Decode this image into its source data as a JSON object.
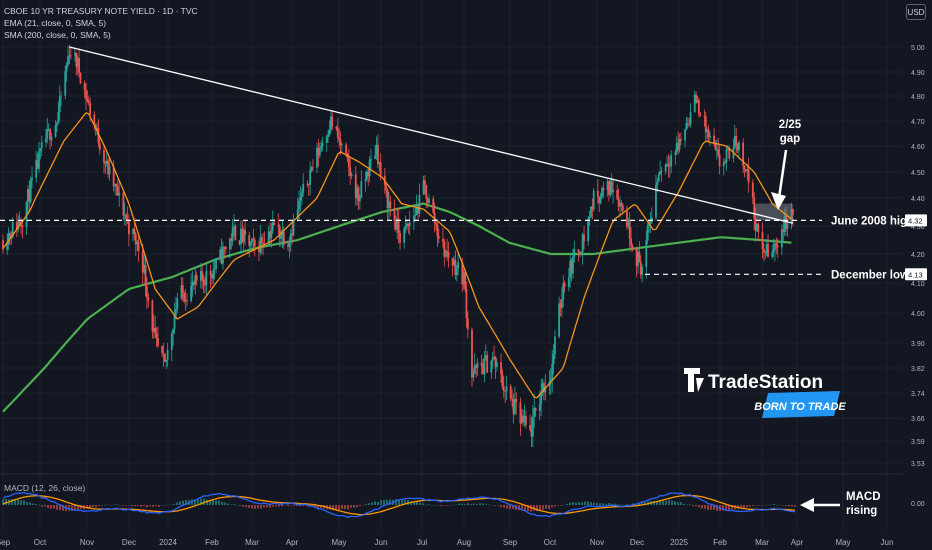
{
  "legend": {
    "title": "CBOE 10 YR TREASURY NOTE YIELD · 1D · TVC",
    "ema": "EMA (21, close, 0, SMA, 5)",
    "sma": "SMA (200, close, 0, SMA, 5)",
    "macd": "MACD (12, 26, close)"
  },
  "currency_button": "USD",
  "brand": {
    "name": "TradeStation",
    "tagline": "BORN TO TRADE"
  },
  "colors": {
    "background": "#131722",
    "up_candle": "#26a69a",
    "down_candle": "#ef5350",
    "ema": "#f7931a",
    "sma": "#4caf50",
    "trendline": "#ffffff",
    "macd_line": "#2962ff",
    "signal_line": "#ff9800",
    "accent": "#2196f3"
  },
  "chart_data": {
    "type": "candlestick",
    "y_ticks": [
      "5.00",
      "4.90",
      "4.80",
      "4.70",
      "4.60",
      "4.50",
      "4.40",
      "4.30",
      "4.20",
      "4.10",
      "4.00",
      "3.90",
      "3.82",
      "3.74",
      "3.66",
      "3.59",
      "3.53"
    ],
    "x_ticks": [
      "Sep",
      "Oct",
      "Nov",
      "Dec",
      "2024",
      "Feb",
      "Mar",
      "Apr",
      "May",
      "Jun",
      "Jul",
      "Aug",
      "Sep",
      "Oct",
      "Nov",
      "Dec",
      "2025",
      "Feb",
      "Mar",
      "Apr",
      "May",
      "Jun"
    ],
    "price_tags": [
      "4.32",
      "4.13"
    ],
    "macd_tick": "0.00",
    "candle_path": [
      [
        "2023-09-01",
        4.25
      ],
      [
        "2023-09-15",
        4.33
      ],
      [
        "2023-10-01",
        4.62
      ],
      [
        "2023-10-10",
        4.7
      ],
      [
        "2023-10-19",
        4.99
      ],
      [
        "2023-10-25",
        4.93
      ],
      [
        "2023-11-01",
        4.78
      ],
      [
        "2023-11-15",
        4.52
      ],
      [
        "2023-12-01",
        4.3
      ],
      [
        "2023-12-10",
        4.2
      ],
      [
        "2023-12-20",
        3.9
      ],
      [
        "2023-12-27",
        3.82
      ],
      [
        "2024-01-05",
        4.05
      ],
      [
        "2024-01-20",
        4.1
      ],
      [
        "2024-02-01",
        4.15
      ],
      [
        "2024-02-15",
        4.28
      ],
      [
        "2024-03-01",
        4.22
      ],
      [
        "2024-03-15",
        4.3
      ],
      [
        "2024-03-25",
        4.25
      ],
      [
        "2024-04-10",
        4.5
      ],
      [
        "2024-04-25",
        4.7
      ],
      [
        "2024-05-01",
        4.62
      ],
      [
        "2024-05-15",
        4.4
      ],
      [
        "2024-05-28",
        4.6
      ],
      [
        "2024-06-01",
        4.45
      ],
      [
        "2024-06-15",
        4.25
      ],
      [
        "2024-06-28",
        4.38
      ],
      [
        "2024-07-01",
        4.45
      ],
      [
        "2024-07-15",
        4.22
      ],
      [
        "2024-07-30",
        4.12
      ],
      [
        "2024-08-05",
        3.8
      ],
      [
        "2024-08-20",
        3.85
      ],
      [
        "2024-09-01",
        3.72
      ],
      [
        "2024-09-10",
        3.65
      ],
      [
        "2024-09-16",
        3.61
      ],
      [
        "2024-09-25",
        3.76
      ],
      [
        "2024-10-01",
        3.8
      ],
      [
        "2024-10-10",
        4.1
      ],
      [
        "2024-10-25",
        4.26
      ],
      [
        "2024-11-01",
        4.4
      ],
      [
        "2024-11-15",
        4.45
      ],
      [
        "2024-11-25",
        4.32
      ],
      [
        "2024-12-01",
        4.2
      ],
      [
        "2024-12-06",
        4.15
      ],
      [
        "2024-12-18",
        4.5
      ],
      [
        "2025-01-01",
        4.6
      ],
      [
        "2025-01-14",
        4.79
      ],
      [
        "2025-01-22",
        4.65
      ],
      [
        "2025-02-01",
        4.52
      ],
      [
        "2025-02-12",
        4.62
      ],
      [
        "2025-02-20",
        4.5
      ],
      [
        "2025-03-01",
        4.22
      ],
      [
        "2025-03-10",
        4.2
      ],
      [
        "2025-03-18",
        4.3
      ],
      [
        "2025-03-25",
        4.34
      ]
    ],
    "ema21_path": [
      [
        "2023-09-01",
        4.22
      ],
      [
        "2023-09-20",
        4.35
      ],
      [
        "2023-10-15",
        4.62
      ],
      [
        "2023-11-01",
        4.74
      ],
      [
        "2023-11-15",
        4.58
      ],
      [
        "2023-12-01",
        4.38
      ],
      [
        "2023-12-20",
        4.08
      ],
      [
        "2024-01-05",
        3.98
      ],
      [
        "2024-01-20",
        4.02
      ],
      [
        "2024-02-15",
        4.18
      ],
      [
        "2024-03-15",
        4.25
      ],
      [
        "2024-04-15",
        4.4
      ],
      [
        "2024-05-01",
        4.58
      ],
      [
        "2024-05-15",
        4.54
      ],
      [
        "2024-06-01",
        4.48
      ],
      [
        "2024-06-15",
        4.38
      ],
      [
        "2024-07-01",
        4.36
      ],
      [
        "2024-07-20",
        4.28
      ],
      [
        "2024-08-10",
        4.02
      ],
      [
        "2024-09-01",
        3.85
      ],
      [
        "2024-09-20",
        3.72
      ],
      [
        "2024-10-10",
        3.82
      ],
      [
        "2024-10-25",
        4.05
      ],
      [
        "2024-11-15",
        4.32
      ],
      [
        "2024-12-01",
        4.38
      ],
      [
        "2024-12-15",
        4.28
      ],
      [
        "2025-01-01",
        4.42
      ],
      [
        "2025-01-20",
        4.62
      ],
      [
        "2025-02-05",
        4.6
      ],
      [
        "2025-02-25",
        4.5
      ],
      [
        "2025-03-10",
        4.38
      ],
      [
        "2025-03-25",
        4.32
      ]
    ],
    "sma200_path": [
      [
        "2023-09-01",
        3.68
      ],
      [
        "2023-10-01",
        3.82
      ],
      [
        "2023-11-01",
        3.98
      ],
      [
        "2023-12-01",
        4.08
      ],
      [
        "2024-01-01",
        4.12
      ],
      [
        "2024-02-01",
        4.18
      ],
      [
        "2024-03-01",
        4.22
      ],
      [
        "2024-04-01",
        4.25
      ],
      [
        "2024-05-01",
        4.3
      ],
      [
        "2024-06-01",
        4.35
      ],
      [
        "2024-07-01",
        4.38
      ],
      [
        "2024-07-20",
        4.35
      ],
      [
        "2024-08-10",
        4.3
      ],
      [
        "2024-09-01",
        4.24
      ],
      [
        "2024-10-01",
        4.2
      ],
      [
        "2024-11-01",
        4.2
      ],
      [
        "2024-12-01",
        4.22
      ],
      [
        "2025-01-01",
        4.24
      ],
      [
        "2025-02-01",
        4.26
      ],
      [
        "2025-03-01",
        4.25
      ],
      [
        "2025-03-25",
        4.24
      ]
    ],
    "trendline": [
      [
        "2023-10-19",
        5.0
      ],
      [
        "2025-03-25",
        4.31
      ]
    ],
    "horizontal_levels": [
      {
        "value": 4.32,
        "label": "June 2008 high"
      },
      {
        "value": 4.13,
        "label": "December low"
      }
    ],
    "gap_zone": {
      "from": "2025-02-25",
      "to": "2025-03-25",
      "low": 4.32,
      "high": 4.38
    },
    "annotations": [
      {
        "text": "2/25 gap"
      },
      {
        "text": "MACD rising"
      }
    ]
  }
}
